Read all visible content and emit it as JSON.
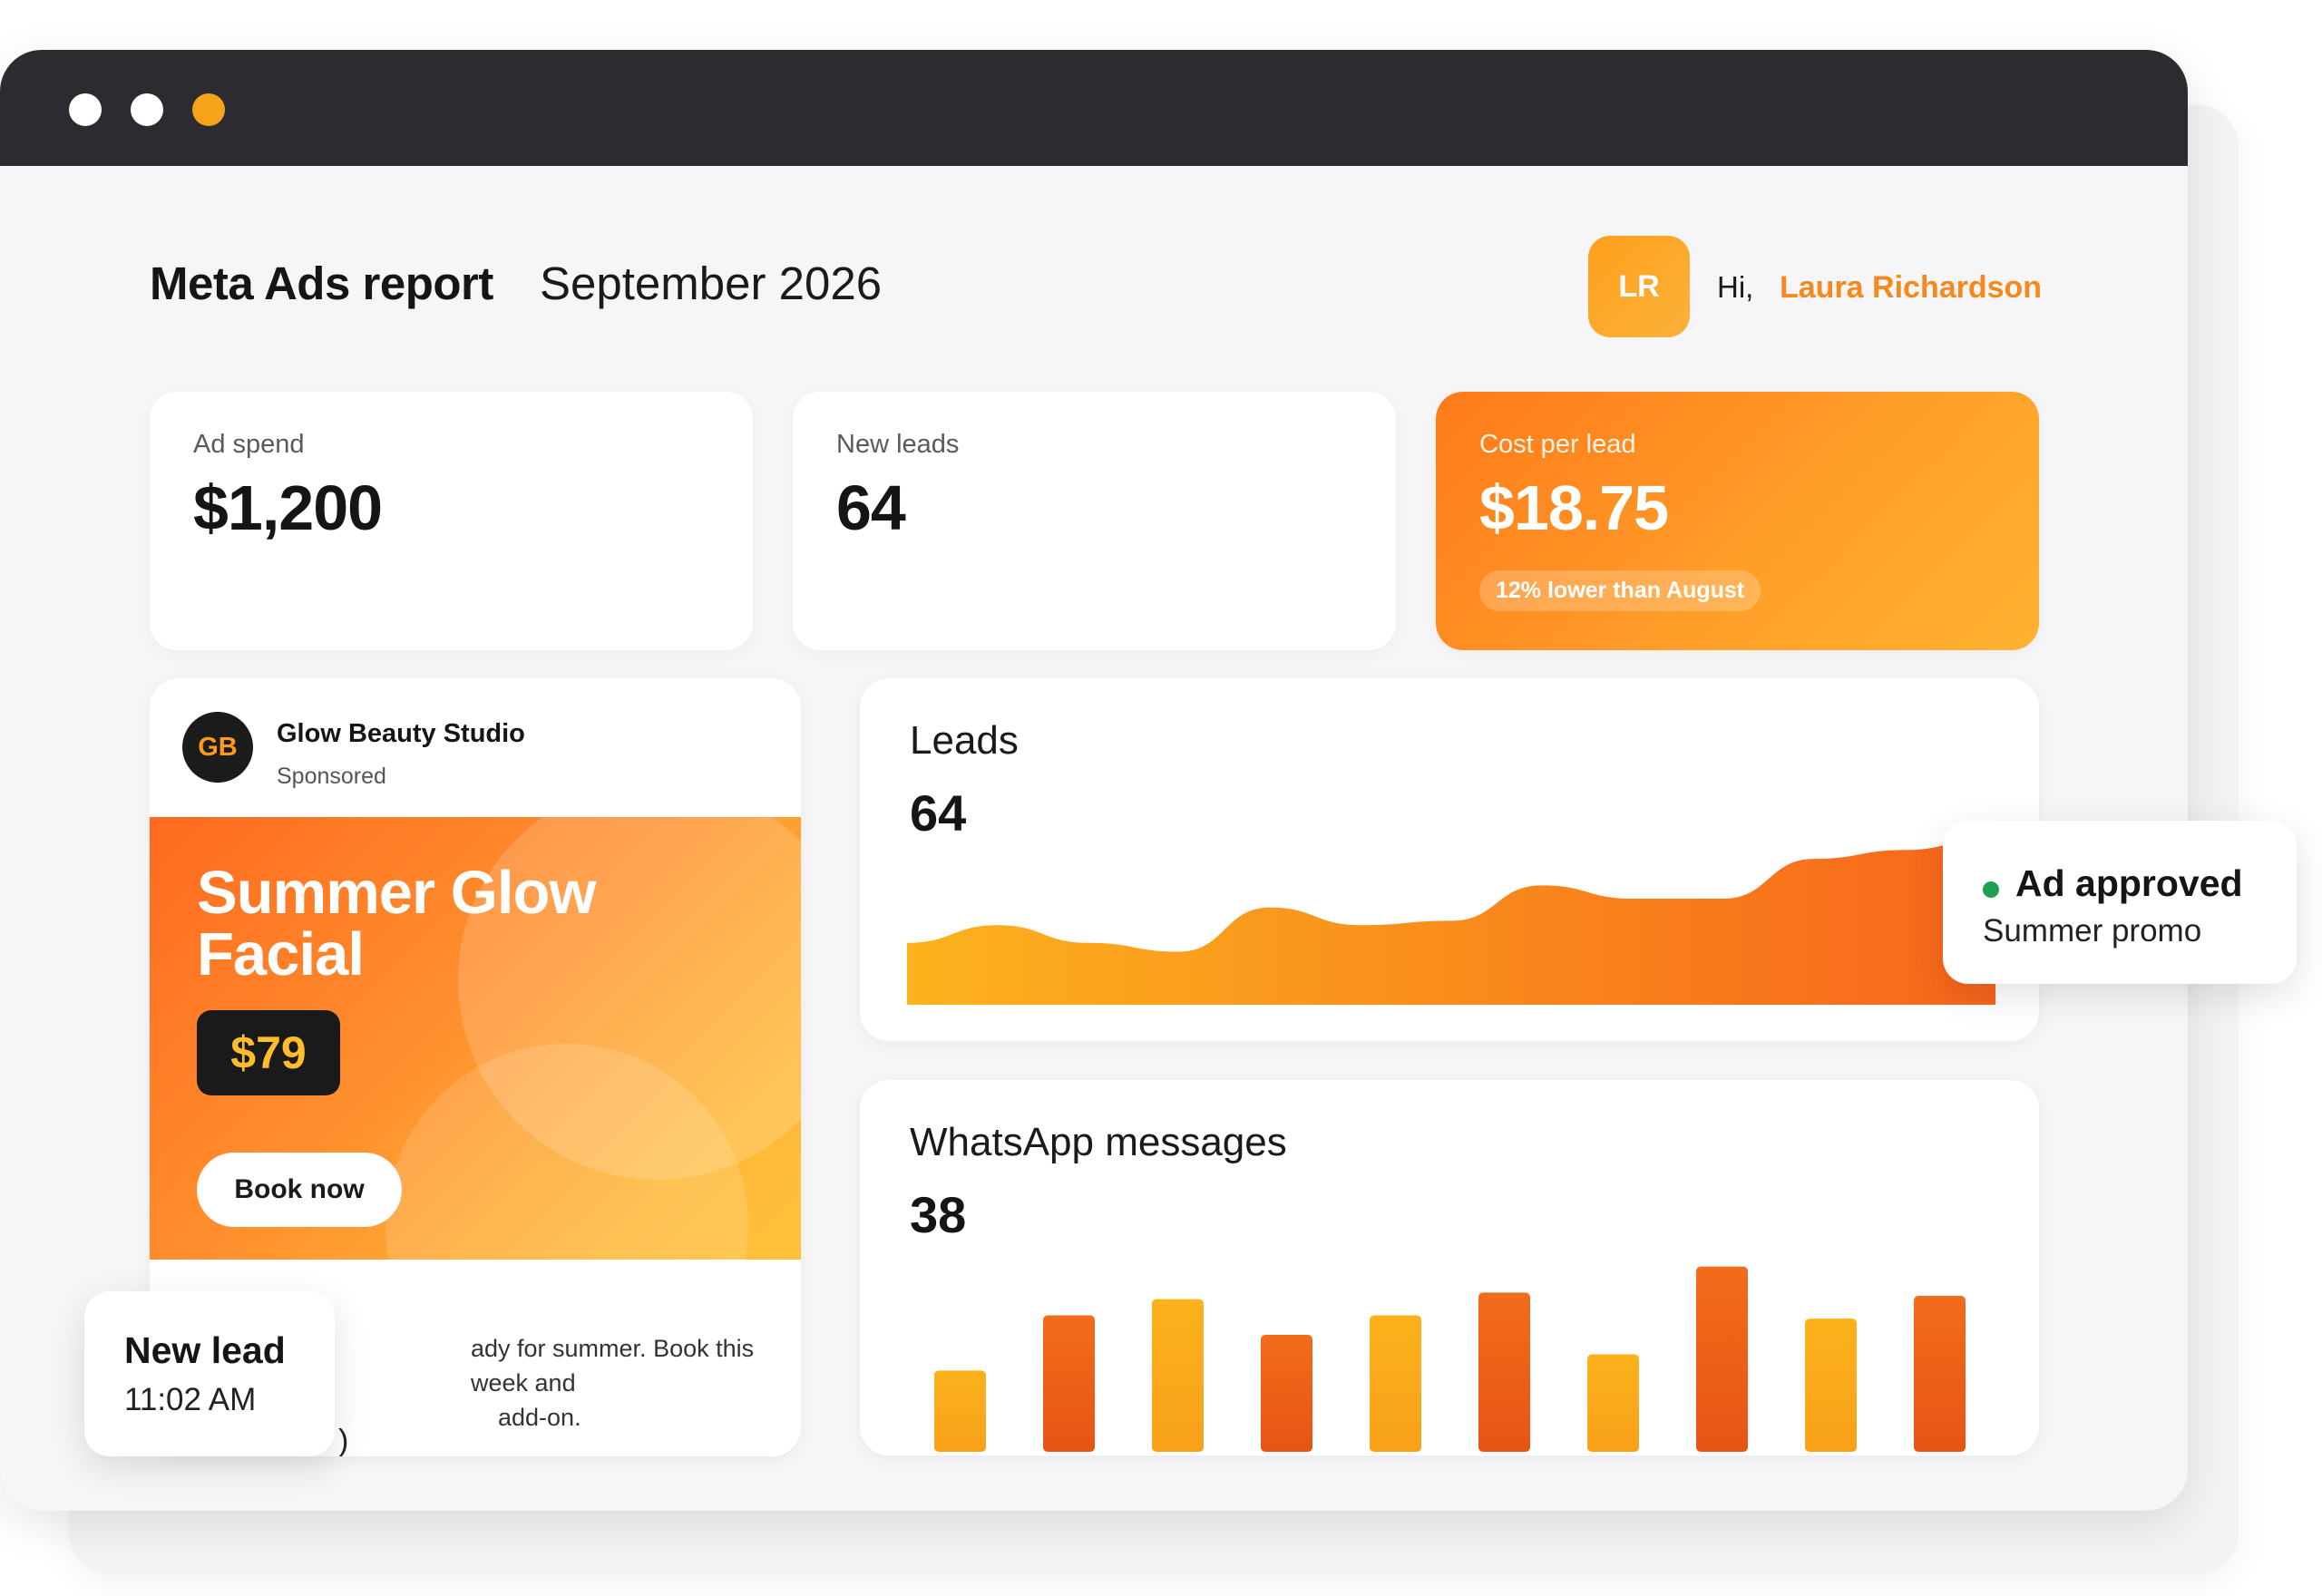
{
  "window": {
    "controls": [
      {
        "name": "close",
        "color": "#ffffff"
      },
      {
        "name": "minimize",
        "color": "#ffffff"
      },
      {
        "name": "maximize",
        "color": "#f7a21b"
      }
    ]
  },
  "header": {
    "title": "Meta Ads report",
    "period": "September 2026",
    "user_initials": "LR",
    "greeting": "Hi,",
    "user_name": "Laura Richardson"
  },
  "kpis": [
    {
      "label": "Ad spend",
      "value": "$1,200"
    },
    {
      "label": "New leads",
      "value": "64"
    },
    {
      "label": "Cost per lead",
      "value": "$18.75",
      "badge": "12% lower than August"
    }
  ],
  "ad_preview": {
    "business_initials": "GB",
    "business_name": "Glow Beauty Studio",
    "sponsored_label": "Sponsored",
    "headline": "Summer Glow Facial",
    "price": "$79",
    "cta": "Book now",
    "body_line1": "ady for summer. Book this week and",
    "body_line2": "add-on.",
    "body_tail": ")"
  },
  "leads_chart": {
    "title": "Leads",
    "total": "64"
  },
  "whatsapp_chart": {
    "title": "WhatsApp messages",
    "total": "38"
  },
  "chart_data": [
    {
      "type": "area",
      "title": "Leads",
      "x": [
        1,
        2,
        3,
        4,
        5,
        6,
        7,
        8,
        9,
        10,
        11,
        12,
        13
      ],
      "values": [
        14,
        18,
        14,
        12,
        22,
        18,
        19,
        27,
        24,
        24,
        33,
        35,
        38
      ],
      "ylim": [
        0,
        40
      ],
      "grid": false,
      "colors": [
        "#fcb31d",
        "#f7651c"
      ]
    },
    {
      "type": "bar",
      "title": "WhatsApp messages",
      "categories": [
        "1",
        "2",
        "3",
        "4",
        "5",
        "6",
        "7",
        "8",
        "9",
        "10"
      ],
      "values": [
        5,
        8.4,
        9.4,
        7.2,
        8.4,
        9.8,
        6,
        11.4,
        8.2,
        9.6
      ],
      "ylim": [
        0,
        12
      ],
      "grid": false,
      "colors": [
        "#fcb21c",
        "#f06018"
      ]
    }
  ],
  "toasts": {
    "approved": {
      "title": "Ad approved",
      "subtitle": "Summer promo",
      "status_color": "#1ea055"
    },
    "new_lead": {
      "title": "New lead",
      "time": "11:02 AM"
    }
  }
}
